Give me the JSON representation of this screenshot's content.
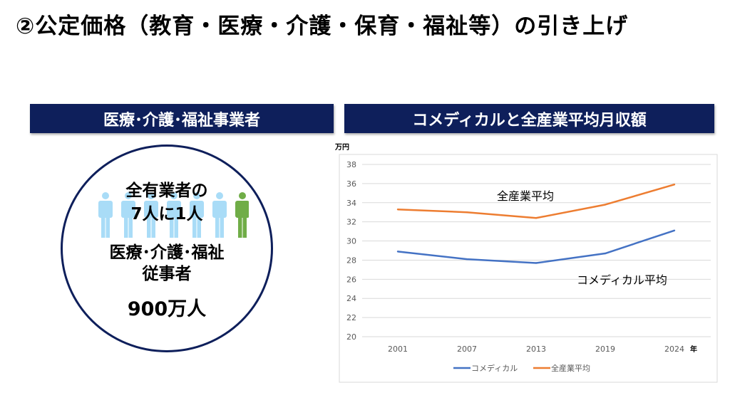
{
  "title": "②公定価格（教育・医療・介護・保育・福祉等）の引き上げ",
  "left_panel": {
    "header": "医療･介護･福祉事業者",
    "ratio_line1": "全有業者の",
    "ratio_line2": "7人に1人",
    "workers_line1": "医療･介護･福祉",
    "workers_line2": "従事者",
    "count": "900万人",
    "icon_colors": {
      "others": "#a9dcf7",
      "highlight": "#70ad47"
    }
  },
  "right_panel": {
    "header": "コメディカルと全産業平均月収額"
  },
  "chart_data": {
    "type": "line",
    "title": "コメディカルと全産業平均月収額",
    "ylabel": "万円",
    "xlabel": "年",
    "categories": [
      "2001",
      "2007",
      "2013",
      "2019",
      "2024"
    ],
    "ylim": [
      20,
      38
    ],
    "yticks": [
      20,
      22,
      24,
      26,
      28,
      30,
      32,
      34,
      36,
      38
    ],
    "grid": true,
    "legend": "bottom",
    "series": [
      {
        "name": "コメディカル",
        "annotation": "コメディカル平均",
        "color": "#4472c4",
        "values": [
          28.9,
          28.1,
          27.7,
          28.7,
          31.1
        ]
      },
      {
        "name": "全産業平均",
        "annotation": "全産業平均",
        "color": "#ed7d31",
        "values": [
          33.3,
          33.0,
          32.4,
          33.8,
          35.9
        ]
      }
    ]
  }
}
